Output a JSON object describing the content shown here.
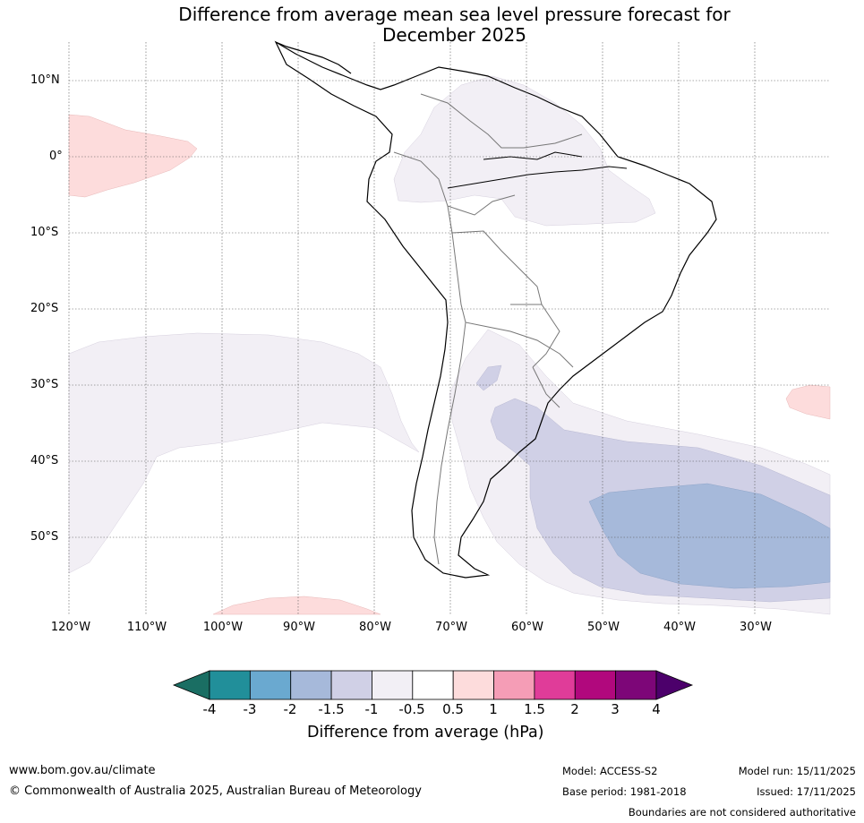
{
  "title_line1": "Difference from average mean sea level pressure forecast for",
  "title_line2": "December 2025",
  "lat_labels": [
    "10°N",
    "0°",
    "10°S",
    "20°S",
    "30°S",
    "40°S",
    "50°S"
  ],
  "lon_labels": [
    "120°W",
    "110°W",
    "100°W",
    "90°W",
    "80°W",
    "70°W",
    "60°W",
    "50°W",
    "40°W",
    "30°W"
  ],
  "colorbar": {
    "label": "Difference from average (hPa)",
    "ticks": [
      "-4",
      "-3",
      "-2",
      "-1.5",
      "-1",
      "-0.5",
      "0.5",
      "1",
      "1.5",
      "2",
      "3",
      "4"
    ],
    "colors": [
      "#1a6e63",
      "#218f9a",
      "#6aa9d0",
      "#a6b9da",
      "#d0d0e6",
      "#f2eff5",
      "#ffffff",
      "#fddcdc",
      "#f59db6",
      "#e03c99",
      "#b1087d",
      "#7d0678",
      "#4c006b"
    ]
  },
  "footer": {
    "url": "www.bom.gov.au/climate",
    "copyright": "© Commonwealth of Australia 2025, Australian Bureau of Meteorology",
    "model": "Model: ACCESS-S2",
    "base_period": "Base period: 1981-2018",
    "model_run": "Model run: 15/11/2025",
    "issued": "Issued: 17/11/2025",
    "disclaimer": "Boundaries are not considered authoritative"
  }
}
